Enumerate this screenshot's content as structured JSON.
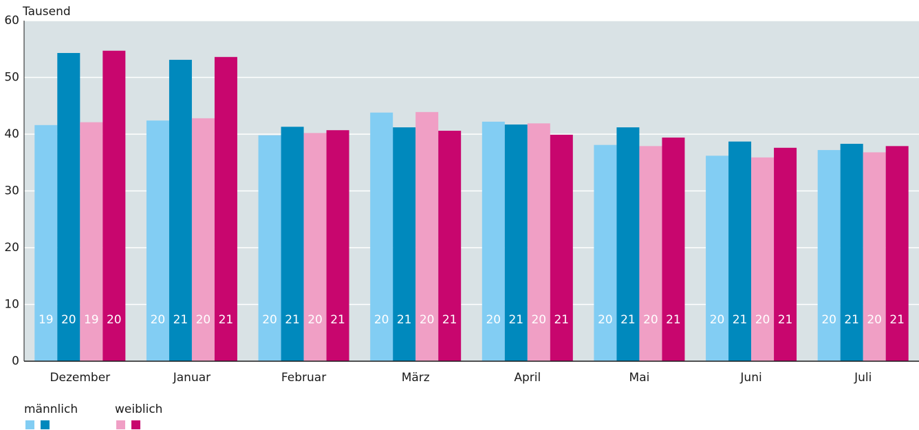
{
  "chart_data": {
    "type": "bar",
    "y_unit": "Tausend",
    "categories": [
      "Dezember",
      "Januar",
      "Februar",
      "März",
      "April",
      "Mai",
      "Juni",
      "Juli"
    ],
    "groups": [
      {
        "name": "männlich",
        "series": [
          {
            "color": "#82cdf3",
            "values": [
              41.6,
              42.4,
              39.8,
              43.8,
              42.2,
              38.1,
              36.2,
              37.2
            ],
            "bar_labels": [
              19,
              20,
              20,
              20,
              20,
              20,
              20,
              20
            ]
          },
          {
            "color": "#0089bd",
            "values": [
              54.3,
              53.1,
              41.3,
              41.2,
              41.7,
              41.2,
              38.7,
              38.3
            ],
            "bar_labels": [
              20,
              21,
              21,
              21,
              21,
              21,
              21,
              21
            ]
          }
        ]
      },
      {
        "name": "weiblich",
        "series": [
          {
            "color": "#f09fc5",
            "values": [
              42.1,
              42.8,
              40.2,
              43.9,
              41.9,
              37.9,
              35.9,
              36.8
            ],
            "bar_labels": [
              19,
              20,
              20,
              20,
              20,
              20,
              20,
              20
            ]
          },
          {
            "color": "#c8066e",
            "values": [
              54.7,
              53.6,
              40.7,
              40.6,
              39.9,
              39.4,
              37.6,
              37.9
            ],
            "bar_labels": [
              20,
              21,
              21,
              21,
              21,
              21,
              21,
              21
            ]
          }
        ]
      }
    ],
    "ylim": [
      0,
      60
    ],
    "yticks": [
      0,
      10,
      20,
      30,
      40,
      50,
      60
    ],
    "grid": true
  }
}
